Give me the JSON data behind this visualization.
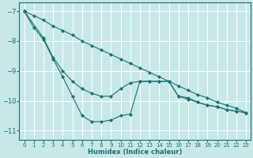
{
  "xlabel": "Humidex (Indice chaleur)",
  "xlim": [
    -0.5,
    23.5
  ],
  "ylim": [
    -11.3,
    -6.7
  ],
  "yticks": [
    -11,
    -10,
    -9,
    -8,
    -7
  ],
  "xticks": [
    0,
    1,
    2,
    3,
    4,
    5,
    6,
    7,
    8,
    9,
    10,
    11,
    12,
    13,
    14,
    15,
    16,
    17,
    18,
    19,
    20,
    21,
    22,
    23
  ],
  "bg_color": "#c8e8e8",
  "grid_color": "#ffffff",
  "line_color": "#1a7070",
  "series": [
    {
      "x": [
        0,
        1,
        2,
        3,
        4,
        5,
        6,
        7,
        8,
        9,
        10,
        11,
        12,
        13,
        14,
        15,
        16,
        17,
        18,
        19,
        20,
        21,
        22,
        23
      ],
      "y": [
        -7.0,
        -7.15,
        -7.3,
        -7.5,
        -7.65,
        -7.8,
        -8.0,
        -8.15,
        -8.3,
        -8.45,
        -8.6,
        -8.75,
        -8.9,
        -9.05,
        -9.2,
        -9.35,
        -9.5,
        -9.65,
        -9.8,
        -9.9,
        -10.05,
        -10.15,
        -10.25,
        -10.4
      ]
    },
    {
      "x": [
        0,
        2,
        3,
        4,
        5,
        6,
        7,
        8,
        9,
        10,
        11,
        12,
        13,
        14,
        15,
        16,
        17,
        18,
        19,
        20,
        21,
        22,
        23
      ],
      "y": [
        -7.0,
        -7.9,
        -8.55,
        -9.0,
        -9.35,
        -9.6,
        -9.75,
        -9.85,
        -9.85,
        -9.6,
        -9.4,
        -9.35,
        -9.35,
        -9.35,
        -9.35,
        -9.85,
        -9.9,
        -10.05,
        -10.15,
        -10.2,
        -10.3,
        -10.35,
        -10.4
      ]
    },
    {
      "x": [
        0,
        1,
        2,
        3,
        4,
        5,
        6,
        7,
        8,
        9,
        10,
        11,
        12,
        13,
        14,
        15,
        16,
        17,
        18,
        19,
        20,
        21,
        22,
        23
      ],
      "y": [
        -7.0,
        -7.55,
        -7.95,
        -8.6,
        -9.2,
        -9.85,
        -10.5,
        -10.7,
        -10.7,
        -10.65,
        -10.5,
        -10.45,
        -9.35,
        -9.35,
        -9.35,
        -9.35,
        -9.85,
        -9.95,
        -10.05,
        -10.15,
        -10.2,
        -10.3,
        -10.35,
        -10.4
      ]
    }
  ]
}
